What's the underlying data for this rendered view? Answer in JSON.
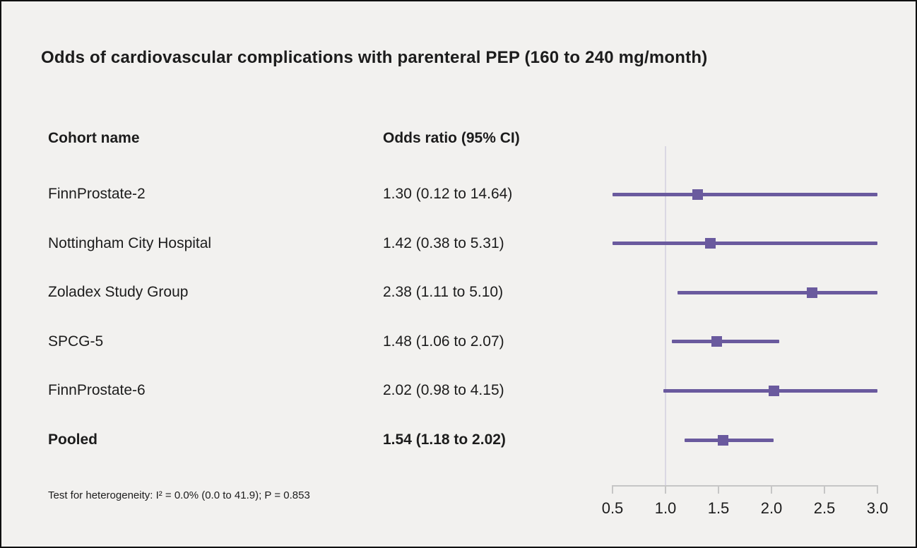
{
  "chart_data": {
    "type": "forest",
    "title": "Odds of cardiovascular complications with parenteral PEP (160 to 240 mg/month)",
    "col_headers": {
      "cohort": "Cohort name",
      "odds_ratio": "Odds ratio (95% CI)"
    },
    "rows": [
      {
        "label": "FinnProstate-2",
        "or_text": "1.30 (0.12 to 14.64)",
        "est": 1.3,
        "lo": 0.12,
        "hi": 14.64,
        "bold": false
      },
      {
        "label": "Nottingham City Hospital",
        "or_text": "1.42 (0.38 to 5.31)",
        "est": 1.42,
        "lo": 0.38,
        "hi": 5.31,
        "bold": false
      },
      {
        "label": "Zoladex Study Group",
        "or_text": "2.38 (1.11 to 5.10)",
        "est": 2.38,
        "lo": 1.11,
        "hi": 5.1,
        "bold": false
      },
      {
        "label": "SPCG-5",
        "or_text": "1.48 (1.06 to 2.07)",
        "est": 1.48,
        "lo": 1.06,
        "hi": 2.07,
        "bold": false
      },
      {
        "label": "FinnProstate-6",
        "or_text": "2.02 (0.98 to 4.15)",
        "est": 2.02,
        "lo": 0.98,
        "hi": 4.15,
        "bold": false
      },
      {
        "label": "Pooled",
        "or_text": "1.54 (1.18 to 2.02)",
        "est": 1.54,
        "lo": 1.18,
        "hi": 2.02,
        "bold": true
      }
    ],
    "axis": {
      "min": 0.5,
      "max": 3.0,
      "ref_line": 1.0,
      "ticks": [
        0.5,
        1.0,
        1.5,
        2.0,
        2.5,
        3.0
      ],
      "tick_labels": [
        "0.5",
        "1.0",
        "1.5",
        "2.0",
        "2.5",
        "3.0"
      ]
    },
    "footnote": "Test for heterogeneity: I² = 0.0% (0.0 to 41.9); P = 0.853",
    "colors": {
      "marker": "#6a5a9e",
      "ci_line": "#6a5a9e",
      "ref_line": "#dbd8e3",
      "axis": "#c6c6c6",
      "text": "#1c1c1c",
      "background": "#f2f1ef"
    },
    "layout_hints": {
      "legend": "none",
      "grid": "off",
      "scale": "linear"
    }
  }
}
